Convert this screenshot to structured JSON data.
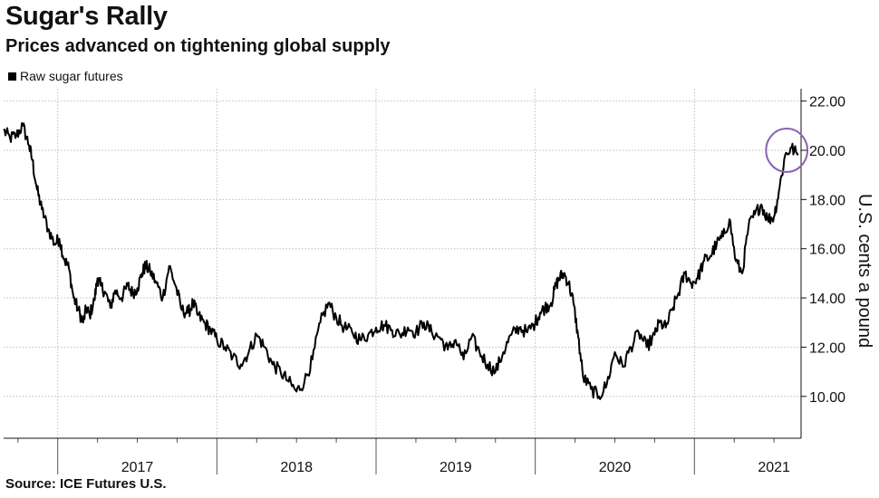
{
  "title": "Sugar's Rally",
  "subtitle": "Prices advanced on tightening global supply",
  "source": "Source: ICE Futures U.S.",
  "colors": {
    "line": "#000000",
    "grid": "#bdbdbd",
    "highlight": "#8e5fb5"
  },
  "chart_data": {
    "type": "line",
    "title": "Sugar's Rally",
    "subtitle": "Prices advanced on tightening global supply",
    "ylabel": "U.S. cents a pound",
    "xlabel": "",
    "legend": "top-left",
    "legend_entries": [
      "Raw sugar futures"
    ],
    "grid": true,
    "y_axis_side": "right",
    "ylim": [
      8.3,
      22.5
    ],
    "yticks": [
      10.0,
      12.0,
      14.0,
      16.0,
      18.0,
      20.0,
      22.0
    ],
    "ytick_labels": [
      "10.00",
      "12.00",
      "14.00",
      "16.00",
      "18.00",
      "20.00",
      "22.00"
    ],
    "xlim": [
      2016.66,
      2021.67
    ],
    "x_year_labels": [
      {
        "label": "2017",
        "year": 2017
      },
      {
        "label": "2018",
        "year": 2018
      },
      {
        "label": "2019",
        "year": 2019
      },
      {
        "label": "2020",
        "year": 2020
      },
      {
        "label": "2021",
        "year": 2021
      }
    ],
    "x_quarter_ticks": [
      2016.75,
      2017.25,
      2017.5,
      2017.75,
      2018.25,
      2018.5,
      2018.75,
      2019.25,
      2019.5,
      2019.75,
      2020.25,
      2020.5,
      2020.75,
      2021.25,
      2021.5
    ],
    "series": [
      {
        "name": "Raw sugar futures",
        "x": [
          2016.66,
          2016.7,
          2016.74,
          2016.78,
          2016.82,
          2016.84,
          2016.87,
          2016.9,
          2016.94,
          2016.98,
          2017.01,
          2017.04,
          2017.07,
          2017.1,
          2017.13,
          2017.16,
          2017.18,
          2017.2,
          2017.23,
          2017.25,
          2017.27,
          2017.3,
          2017.33,
          2017.36,
          2017.4,
          2017.44,
          2017.47,
          2017.5,
          2017.53,
          2017.55,
          2017.58,
          2017.62,
          2017.66,
          2017.7,
          2017.74,
          2017.78,
          2017.82,
          2017.85,
          2017.88,
          2017.92,
          2017.96,
          2018.0,
          2018.05,
          2018.1,
          2018.15,
          2018.2,
          2018.25,
          2018.3,
          2018.35,
          2018.4,
          2018.45,
          2018.5,
          2018.55,
          2018.6,
          2018.65,
          2018.7,
          2018.75,
          2018.8,
          2018.85,
          2018.9,
          2018.95,
          2019.0,
          2019.05,
          2019.1,
          2019.15,
          2019.2,
          2019.25,
          2019.3,
          2019.35,
          2019.4,
          2019.45,
          2019.5,
          2019.55,
          2019.6,
          2019.65,
          2019.7,
          2019.75,
          2019.8,
          2019.85,
          2019.9,
          2019.95,
          2020.0,
          2020.03,
          2020.06,
          2020.1,
          2020.13,
          2020.15,
          2020.18,
          2020.21,
          2020.24,
          2020.27,
          2020.3,
          2020.35,
          2020.4,
          2020.45,
          2020.5,
          2020.55,
          2020.6,
          2020.65,
          2020.7,
          2020.75,
          2020.78,
          2020.82,
          2020.86,
          2020.9,
          2020.94,
          2020.98,
          2021.02,
          2021.06,
          2021.1,
          2021.14,
          2021.18,
          2021.22,
          2021.26,
          2021.3,
          2021.34,
          2021.38,
          2021.42,
          2021.46,
          2021.5,
          2021.53,
          2021.57,
          2021.61,
          2021.65
        ],
        "values": [
          20.8,
          20.5,
          20.6,
          21.0,
          20.2,
          19.6,
          18.4,
          17.6,
          16.8,
          16.2,
          16.4,
          15.6,
          15.2,
          14.0,
          13.5,
          13.0,
          13.6,
          13.3,
          13.9,
          14.8,
          14.5,
          14.2,
          13.6,
          14.3,
          14.0,
          14.5,
          14.2,
          14.4,
          15.0,
          15.3,
          15.1,
          14.6,
          14.0,
          15.3,
          14.5,
          13.5,
          13.4,
          13.8,
          13.3,
          13.0,
          12.7,
          12.3,
          12.0,
          11.6,
          11.3,
          11.8,
          12.5,
          12.0,
          11.3,
          11.0,
          10.6,
          10.2,
          10.6,
          11.5,
          13.0,
          13.8,
          13.2,
          12.8,
          12.6,
          12.3,
          12.5,
          12.8,
          12.9,
          12.7,
          12.5,
          12.8,
          12.6,
          13.0,
          12.6,
          12.4,
          11.9,
          12.3,
          11.5,
          12.4,
          11.8,
          11.3,
          11.0,
          11.8,
          12.5,
          12.8,
          12.6,
          13.0,
          13.4,
          13.6,
          13.8,
          14.5,
          14.8,
          15.0,
          14.6,
          13.8,
          12.4,
          10.8,
          10.3,
          10.0,
          10.5,
          11.8,
          11.2,
          12.0,
          12.6,
          12.0,
          12.5,
          13.0,
          12.8,
          13.5,
          14.2,
          15.0,
          14.6,
          14.8,
          15.5,
          15.7,
          16.2,
          16.5,
          17.2,
          15.5,
          15.0,
          16.9,
          17.4,
          17.8,
          17.2,
          17.3,
          18.3,
          19.8,
          20.1,
          19.8
        ],
        "color": "#000000"
      }
    ],
    "annotations": [
      {
        "type": "circle",
        "x": 2021.58,
        "y": 20.0,
        "rx_years": 0.13,
        "ry_value": 0.88,
        "color": "#8e5fb5",
        "label": ""
      }
    ]
  }
}
